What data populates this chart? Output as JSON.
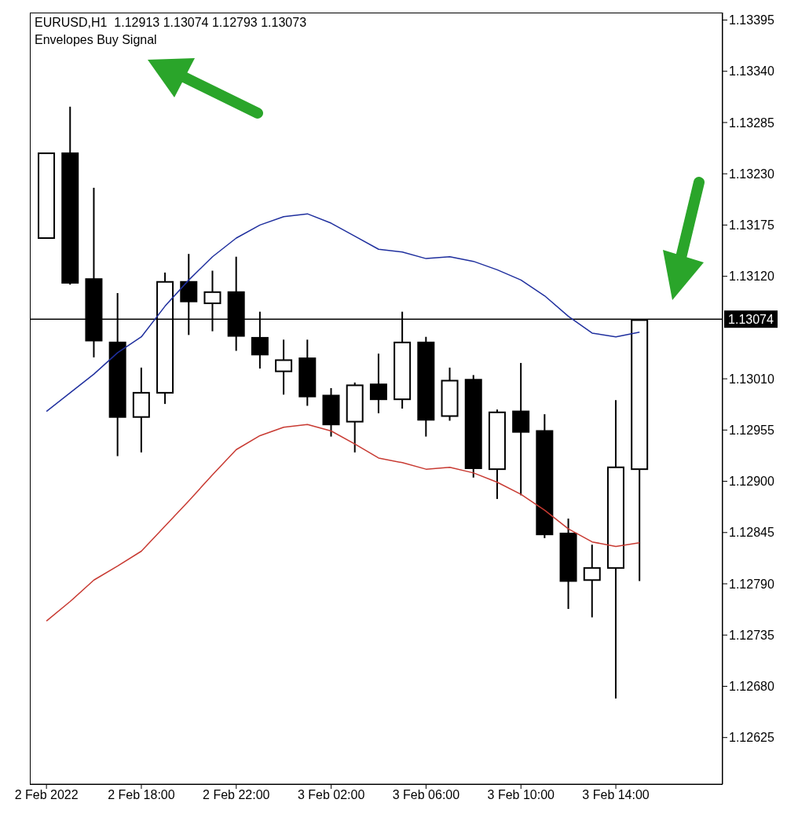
{
  "chart_data": {
    "type": "candlestick",
    "title": "EURUSD,H1  1.12913 1.13074 1.12793 1.13073",
    "subtitle": "Envelopes Buy Signal",
    "categories": [
      "2 Feb 2022",
      null,
      null,
      null,
      "2 Feb 18:00",
      null,
      null,
      null,
      "2 Feb 22:00",
      null,
      null,
      null,
      "3 Feb 02:00",
      null,
      null,
      null,
      "3 Feb 06:00",
      null,
      null,
      null,
      "3 Feb 10:00",
      null,
      null,
      null,
      "3 Feb 14:00",
      null
    ],
    "ohlc": [
      [
        1.13161,
        1.13252,
        1.13161,
        1.13252
      ],
      [
        1.13252,
        1.13302,
        1.13111,
        1.13113
      ],
      [
        1.13117,
        1.13215,
        1.13033,
        1.13051
      ],
      [
        1.13049,
        1.13102,
        1.12927,
        1.12969
      ],
      [
        1.12969,
        1.13022,
        1.12931,
        1.12995
      ],
      [
        1.12995,
        1.13124,
        1.12983,
        1.13114
      ],
      [
        1.13114,
        1.13144,
        1.13057,
        1.13093
      ],
      [
        1.13091,
        1.13126,
        1.13061,
        1.13103
      ],
      [
        1.13103,
        1.13141,
        1.1304,
        1.13056
      ],
      [
        1.13054,
        1.13082,
        1.13021,
        1.13036
      ],
      [
        1.13018,
        1.13052,
        1.12993,
        1.1303
      ],
      [
        1.13032,
        1.13052,
        1.12981,
        1.12991
      ],
      [
        1.12992,
        1.13,
        1.12948,
        1.12961
      ],
      [
        1.12964,
        1.13006,
        1.12931,
        1.13003
      ],
      [
        1.13004,
        1.13037,
        1.12973,
        1.12988
      ],
      [
        1.12988,
        1.13082,
        1.12978,
        1.13049
      ],
      [
        1.13049,
        1.13055,
        1.12948,
        1.12966
      ],
      [
        1.1297,
        1.13022,
        1.12965,
        1.13008
      ],
      [
        1.13009,
        1.13014,
        1.12904,
        1.12914
      ],
      [
        1.12913,
        1.12977,
        1.12881,
        1.12974
      ],
      [
        1.12975,
        1.13027,
        1.12885,
        1.12953
      ],
      [
        1.12954,
        1.12972,
        1.12839,
        1.12843
      ],
      [
        1.12844,
        1.1286,
        1.12763,
        1.12793
      ],
      [
        1.12794,
        1.12832,
        1.12754,
        1.12807
      ],
      [
        1.12807,
        1.12987,
        1.12667,
        1.12915
      ],
      [
        1.12913,
        1.13074,
        1.12793,
        1.13073
      ]
    ],
    "series": [
      {
        "type": "line",
        "color": "#1f2f9e",
        "values": [
          1.12975,
          1.12995,
          1.13015,
          1.13038,
          1.13055,
          1.13088,
          1.13116,
          1.13141,
          1.13161,
          1.13175,
          1.13184,
          1.13187,
          1.13177,
          1.13163,
          1.13149,
          1.13146,
          1.13139,
          1.13141,
          1.13136,
          1.13127,
          1.13116,
          1.13099,
          1.13077,
          1.13059,
          1.13055,
          1.1306
        ]
      },
      {
        "type": "line",
        "color": "#c83a32",
        "values": [
          1.1275,
          1.12771,
          1.12794,
          1.12809,
          1.12825,
          1.12852,
          1.12879,
          1.12907,
          1.12934,
          1.12949,
          1.12958,
          1.12961,
          1.12954,
          1.1294,
          1.12925,
          1.1292,
          1.12913,
          1.12915,
          1.12909,
          1.12899,
          1.12886,
          1.12869,
          1.12849,
          1.12835,
          1.1283,
          1.12834
        ]
      }
    ],
    "ylim": [
      1.12575,
      1.13403
    ],
    "yticks": [
      {
        "value": 1.13395,
        "label": "1.13395"
      },
      {
        "value": 1.1334,
        "label": "1.13340"
      },
      {
        "value": 1.13285,
        "label": "1.13285"
      },
      {
        "value": 1.1323,
        "label": "1.13230"
      },
      {
        "value": 1.13175,
        "label": "1.13175"
      },
      {
        "value": 1.1312,
        "label": "1.13120"
      },
      {
        "value": 1.1301,
        "label": "1.13010"
      },
      {
        "value": 1.12955,
        "label": "1.12955"
      },
      {
        "value": 1.129,
        "label": "1.12900"
      },
      {
        "value": 1.12845,
        "label": "1.12845"
      },
      {
        "value": 1.1279,
        "label": "1.12790"
      },
      {
        "value": 1.12735,
        "label": "1.12735"
      },
      {
        "value": 1.1268,
        "label": "1.12680"
      },
      {
        "value": 1.12625,
        "label": "1.12625"
      }
    ],
    "ref_lines": [
      {
        "axis": "y",
        "value": 1.13074,
        "label": "1.13074",
        "color": "#000000"
      }
    ]
  }
}
